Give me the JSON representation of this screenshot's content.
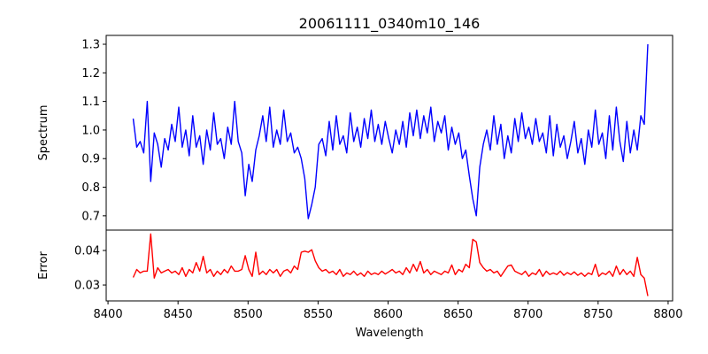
{
  "chart_data": [
    {
      "type": "line",
      "title": "20061111_0340m10_146",
      "xlabel": "",
      "ylabel": "Spectrum",
      "xlim": [
        8398.7,
        8803.2
      ],
      "ylim": [
        0.65,
        1.331
      ],
      "yticks": [
        0.7,
        0.8,
        0.9,
        1.0,
        1.1,
        1.2,
        1.3
      ],
      "ytick_labels": [
        "0.7",
        "0.8",
        "0.9",
        "1.0",
        "1.1",
        "1.2",
        "1.3"
      ],
      "color": "#0000ff",
      "x_start": 8418,
      "x_step": 2.5,
      "y": [
        1.04,
        0.94,
        0.96,
        0.92,
        1.1,
        0.82,
        0.99,
        0.95,
        0.87,
        0.97,
        0.93,
        1.02,
        0.96,
        1.08,
        0.94,
        1.0,
        0.91,
        1.05,
        0.94,
        0.98,
        0.88,
        1.0,
        0.93,
        1.06,
        0.95,
        0.97,
        0.9,
        1.01,
        0.95,
        1.1,
        0.96,
        0.92,
        0.77,
        0.88,
        0.82,
        0.93,
        0.98,
        1.05,
        0.96,
        1.08,
        0.94,
        1.0,
        0.95,
        1.07,
        0.96,
        0.99,
        0.92,
        0.94,
        0.9,
        0.83,
        0.69,
        0.74,
        0.8,
        0.95,
        0.97,
        0.91,
        1.03,
        0.93,
        1.05,
        0.95,
        0.98,
        0.92,
        1.06,
        0.96,
        1.01,
        0.94,
        1.04,
        0.97,
        1.07,
        0.96,
        1.02,
        0.95,
        1.03,
        0.97,
        0.92,
        1.0,
        0.95,
        1.03,
        0.94,
        1.06,
        0.98,
        1.07,
        0.97,
        1.05,
        0.99,
        1.08,
        0.96,
        1.03,
        0.99,
        1.05,
        0.93,
        1.01,
        0.95,
        0.99,
        0.9,
        0.93,
        0.84,
        0.76,
        0.7,
        0.87,
        0.95,
        1.0,
        0.93,
        1.05,
        0.95,
        1.02,
        0.9,
        0.98,
        0.92,
        1.04,
        0.96,
        1.06,
        0.97,
        1.01,
        0.95,
        1.04,
        0.96,
        0.99,
        0.92,
        1.05,
        0.91,
        1.02,
        0.94,
        0.98,
        0.9,
        0.96,
        1.03,
        0.92,
        0.97,
        0.88,
        1.0,
        0.94,
        1.07,
        0.95,
        0.99,
        0.9,
        1.05,
        0.93,
        1.08,
        0.96,
        0.89,
        1.03,
        0.92,
        1.0,
        0.93,
        1.05,
        1.02,
        1.3
      ]
    },
    {
      "type": "line",
      "title": "",
      "xlabel": "Wavelength",
      "ylabel": "Error",
      "xlim": [
        8398.7,
        8803.2
      ],
      "ylim": [
        0.0254,
        0.0459
      ],
      "xticks": [
        8400,
        8450,
        8500,
        8550,
        8600,
        8650,
        8700,
        8750,
        8800
      ],
      "xtick_labels": [
        "8400",
        "8450",
        "8500",
        "8550",
        "8600",
        "8650",
        "8700",
        "8750",
        "8800"
      ],
      "yticks": [
        0.03,
        0.04
      ],
      "ytick_labels": [
        "0.03",
        "0.04"
      ],
      "color": "#ff0000",
      "x_start": 8418,
      "x_step": 2.5,
      "y": [
        0.0322,
        0.0345,
        0.0335,
        0.034,
        0.034,
        0.0448,
        0.032,
        0.035,
        0.0335,
        0.034,
        0.0345,
        0.0335,
        0.034,
        0.033,
        0.035,
        0.0325,
        0.0345,
        0.0335,
        0.0365,
        0.034,
        0.0383,
        0.0335,
        0.0345,
        0.0325,
        0.034,
        0.033,
        0.0345,
        0.0335,
        0.0355,
        0.034,
        0.034,
        0.0345,
        0.0385,
        0.0345,
        0.0325,
        0.0395,
        0.033,
        0.034,
        0.033,
        0.0345,
        0.0335,
        0.0345,
        0.0325,
        0.034,
        0.0345,
        0.0335,
        0.0355,
        0.0345,
        0.0395,
        0.0398,
        0.0395,
        0.0402,
        0.037,
        0.035,
        0.034,
        0.0345,
        0.0335,
        0.034,
        0.033,
        0.0345,
        0.0325,
        0.0335,
        0.033,
        0.034,
        0.0328,
        0.0335,
        0.0325,
        0.034,
        0.033,
        0.0335,
        0.033,
        0.034,
        0.0332,
        0.0338,
        0.0345,
        0.0335,
        0.034,
        0.033,
        0.035,
        0.0335,
        0.036,
        0.034,
        0.0368,
        0.0335,
        0.0345,
        0.033,
        0.034,
        0.0335,
        0.033,
        0.034,
        0.0335,
        0.0358,
        0.033,
        0.0345,
        0.0338,
        0.036,
        0.035,
        0.0432,
        0.0425,
        0.0365,
        0.035,
        0.034,
        0.0345,
        0.0335,
        0.034,
        0.0325,
        0.034,
        0.0355,
        0.0358,
        0.034,
        0.0335,
        0.033,
        0.034,
        0.0325,
        0.0335,
        0.033,
        0.0345,
        0.0325,
        0.034,
        0.033,
        0.0335,
        0.033,
        0.034,
        0.0328,
        0.0336,
        0.033,
        0.0338,
        0.0328,
        0.0335,
        0.0325,
        0.0335,
        0.033,
        0.036,
        0.0325,
        0.0335,
        0.033,
        0.034,
        0.0325,
        0.0355,
        0.033,
        0.0345,
        0.033,
        0.034,
        0.0325,
        0.038,
        0.033,
        0.032,
        0.0268
      ]
    }
  ]
}
